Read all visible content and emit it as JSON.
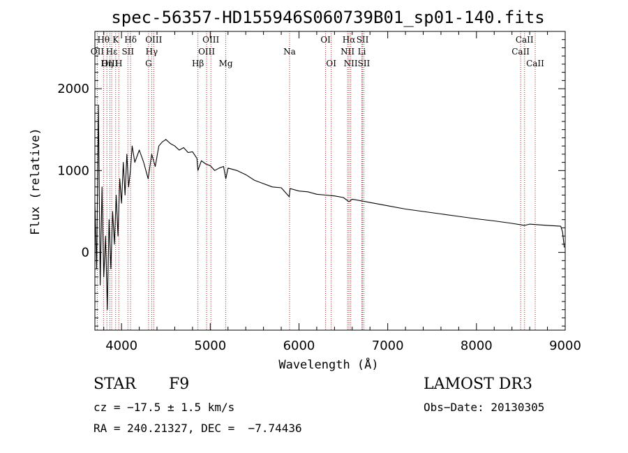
{
  "chart_data": {
    "type": "line",
    "title": "spec-56357-HD155946S060739B01_sp01-140.fits",
    "xlabel": "Wavelength (Å)",
    "ylabel": "Flux (relative)",
    "xlim": [
      3700,
      9000
    ],
    "ylim": [
      -950,
      2700
    ],
    "xticks": [
      4000,
      5000,
      6000,
      7000,
      8000,
      9000
    ],
    "yticks": [
      0,
      1000,
      2000
    ],
    "series": [
      {
        "name": "spectrum",
        "x": [
          3700,
          3720,
          3740,
          3760,
          3780,
          3800,
          3820,
          3840,
          3860,
          3880,
          3900,
          3920,
          3940,
          3960,
          3980,
          4000,
          4020,
          4040,
          4060,
          4080,
          4100,
          4120,
          4150,
          4200,
          4250,
          4300,
          4340,
          4380,
          4420,
          4460,
          4500,
          4550,
          4600,
          4650,
          4700,
          4750,
          4800,
          4850,
          4861,
          4900,
          4950,
          5000,
          5050,
          5100,
          5150,
          5175,
          5200,
          5300,
          5400,
          5500,
          5600,
          5700,
          5800,
          5890,
          5900,
          6000,
          6100,
          6200,
          6300,
          6400,
          6500,
          6563,
          6600,
          6700,
          6800,
          7000,
          7200,
          7400,
          7600,
          7800,
          8000,
          8200,
          8400,
          8542,
          8600,
          8662,
          8800,
          8950,
          8970,
          8990
        ],
        "y": [
          600,
          -200,
          1800,
          -400,
          800,
          -300,
          200,
          -700,
          400,
          -200,
          500,
          100,
          700,
          200,
          900,
          600,
          1100,
          700,
          1200,
          800,
          1000,
          1300,
          1100,
          1250,
          1100,
          900,
          1200,
          1050,
          1300,
          1350,
          1380,
          1330,
          1300,
          1250,
          1280,
          1220,
          1230,
          1150,
          1000,
          1120,
          1080,
          1060,
          1000,
          1030,
          1050,
          900,
          1030,
          1000,
          950,
          880,
          840,
          800,
          790,
          680,
          780,
          750,
          740,
          710,
          700,
          690,
          670,
          620,
          650,
          630,
          610,
          570,
          530,
          500,
          470,
          440,
          410,
          385,
          355,
          330,
          345,
          340,
          330,
          320,
          250,
          60
        ]
      }
    ],
    "lines": [
      {
        "name": "OII",
        "wl": 3727,
        "row": 1
      },
      {
        "name": "Hθ",
        "wl": 3797,
        "row": 0
      },
      {
        "name": "OIII",
        "wl": 3869,
        "row": 2
      },
      {
        "name": "Hε",
        "wl": 3889,
        "row": 1
      },
      {
        "name": "Hη",
        "wl": 3835,
        "row": 2
      },
      {
        "name": "K",
        "wl": 3934,
        "row": 0
      },
      {
        "name": "H",
        "wl": 3969,
        "row": 2
      },
      {
        "name": "SII",
        "wl": 4072,
        "row": 1
      },
      {
        "name": "Hδ",
        "wl": 4102,
        "row": 0
      },
      {
        "name": "G",
        "wl": 4305,
        "row": 2
      },
      {
        "name": "Hγ",
        "wl": 4340,
        "row": 1
      },
      {
        "name": "OIII",
        "wl": 4363,
        "row": 0
      },
      {
        "name": "Hβ",
        "wl": 4861,
        "row": 2
      },
      {
        "name": "OIII",
        "wl": 4959,
        "row": 1
      },
      {
        "name": "OIII",
        "wl": 5007,
        "row": 0
      },
      {
        "name": "Mg",
        "wl": 5175,
        "row": 2
      },
      {
        "name": "Na",
        "wl": 5894,
        "row": 1
      },
      {
        "name": "OI",
        "wl": 6300,
        "row": 0
      },
      {
        "name": "OI",
        "wl": 6363,
        "row": 2
      },
      {
        "name": "NII",
        "wl": 6548,
        "row": 1
      },
      {
        "name": "Hα",
        "wl": 6563,
        "row": 0
      },
      {
        "name": "NII",
        "wl": 6583,
        "row": 2
      },
      {
        "name": "Li",
        "wl": 6708,
        "row": 1
      },
      {
        "name": "SII",
        "wl": 6716,
        "row": 0
      },
      {
        "name": "SII",
        "wl": 6731,
        "row": 2
      },
      {
        "name": "CaII",
        "wl": 8498,
        "row": 1
      },
      {
        "name": "CaII",
        "wl": 8542,
        "row": 0
      },
      {
        "name": "CaII",
        "wl": 8662,
        "row": 2
      }
    ]
  },
  "info": {
    "class": "STAR",
    "subclass": "F9",
    "cz": "cz = −17.5 ± 1.5 km/s",
    "coords": "RA = 240.21327, DEC =  −7.74436",
    "survey": "LAMOST DR3",
    "obs_date": "Obs−Date: 20130305"
  },
  "colors": {
    "spectrum": "#000000",
    "line_marker": "#b22222"
  }
}
